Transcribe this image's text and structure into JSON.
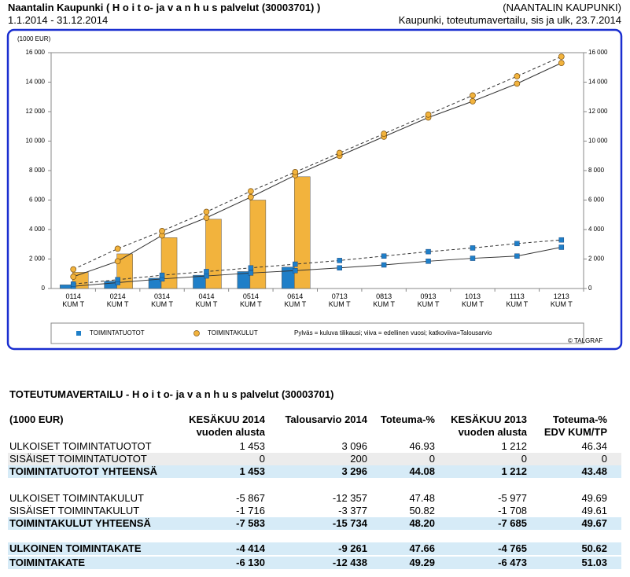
{
  "header": {
    "title": "Naantalin Kaupunki ( H o i t o- ja v a n h u s palvelut (30003701) )",
    "organization": "(NAANTALIN KAUPUNKI)",
    "period": "1.1.2014 - 31.12.2014",
    "report": "Kaupunki, toteutumavertailu, sis ja ulk, 23.7.2014"
  },
  "chart_data": {
    "type": "bar-line",
    "y_label": "(1000 EUR)",
    "categories": [
      "0114\nKUM T",
      "0214\nKUM T",
      "0314\nKUM T",
      "0414\nKUM T",
      "0514\nKUM T",
      "0614\nKUM T",
      "0713\nKUM T",
      "0813\nKUM T",
      "0913\nKUM T",
      "1013\nKUM T",
      "1113\nKUM T",
      "1213\nKUM T"
    ],
    "ylim": [
      0,
      16000
    ],
    "yticks": [
      0,
      {
        "value": 2000,
        "label": "2 000"
      },
      {
        "value": 4000,
        "label": "4 000"
      },
      {
        "value": 6000,
        "label": "6 000"
      },
      {
        "value": 8000,
        "label": "8 000"
      },
      {
        "value": 10000,
        "label": "10 000"
      },
      {
        "value": 12000,
        "label": "12 000"
      },
      {
        "value": 14000,
        "label": "14 000"
      },
      {
        "value": 16000,
        "label": "16 000"
      }
    ],
    "series": [
      {
        "name": "TOIMINTATUOTOT",
        "color": "#1f7fc8",
        "values": [
          250,
          500,
          700,
          900,
          1150,
          1453,
          null,
          null,
          null,
          null,
          null,
          null
        ],
        "previous_year": [
          150,
          400,
          650,
          850,
          1050,
          1212,
          1400,
          1600,
          1850,
          2050,
          2200,
          2800
        ],
        "budget": [
          300,
          600,
          900,
          1150,
          1400,
          1650,
          1900,
          2200,
          2500,
          2750,
          3050,
          3296
        ]
      },
      {
        "name": "TOIMINTAKULUT",
        "color": "#f2b33d",
        "values": [
          1100,
          2350,
          3450,
          4700,
          6000,
          7583,
          null,
          null,
          null,
          null,
          null,
          null
        ],
        "previous_year": [
          800,
          1850,
          3600,
          4800,
          6200,
          7685,
          9000,
          10300,
          11600,
          12700,
          13900,
          15300
        ],
        "budget": [
          1300,
          2700,
          3900,
          5200,
          6600,
          7900,
          9200,
          10500,
          11800,
          13100,
          14400,
          15734
        ]
      }
    ],
    "legend_note": "Pylväs = kuluva tilikausi; viiva = edellinen vuosi; katkoviiva=Talousarvio",
    "credit": "© TALGRAF"
  },
  "table": {
    "title": "TOTEUTUMAVERTAILU - H o i t o- ja v a n h u s palvelut (30003701)",
    "header": [
      "(1000 EUR)",
      "KESÄKUU 2014\nvuoden alusta",
      "Talousarvio 2014",
      "Toteuma-%",
      "KESÄKUU 2013\nvuoden alusta",
      "Toteuma-%\nEDV KUM/TP"
    ],
    "rows": [
      [
        "ULKOISET TOIMINTATUOTOT",
        "1 453",
        "3 096",
        "46.93",
        "1 212",
        "46.34"
      ],
      [
        "SISÄISET TOIMINTATUOTOT",
        "0",
        "200",
        "0",
        "0",
        "0"
      ],
      [
        "TOIMINTATUOTOT YHTEENSÄ",
        "1 453",
        "3 296",
        "44.08",
        "1 212",
        "43.48"
      ],
      [
        "ULKOISET TOIMINTAKULUT",
        "-5 867",
        "-12 357",
        "47.48",
        "-5 977",
        "49.69"
      ],
      [
        "SISÄISET TOIMINTAKULUT",
        "-1 716",
        "-3 377",
        "50.82",
        "-1 708",
        "49.61"
      ],
      [
        "TOIMINTAKULUT YHTEENSÄ",
        "-7 583",
        "-15 734",
        "48.20",
        "-7 685",
        "49.67"
      ],
      [
        "ULKOINEN TOIMINTAKATE",
        "-4 414",
        "-9 261",
        "47.66",
        "-4 765",
        "50.62"
      ],
      [
        "TOIMINTAKATE",
        "-6 130",
        "-12 438",
        "49.29",
        "-6 473",
        "51.03"
      ]
    ]
  }
}
